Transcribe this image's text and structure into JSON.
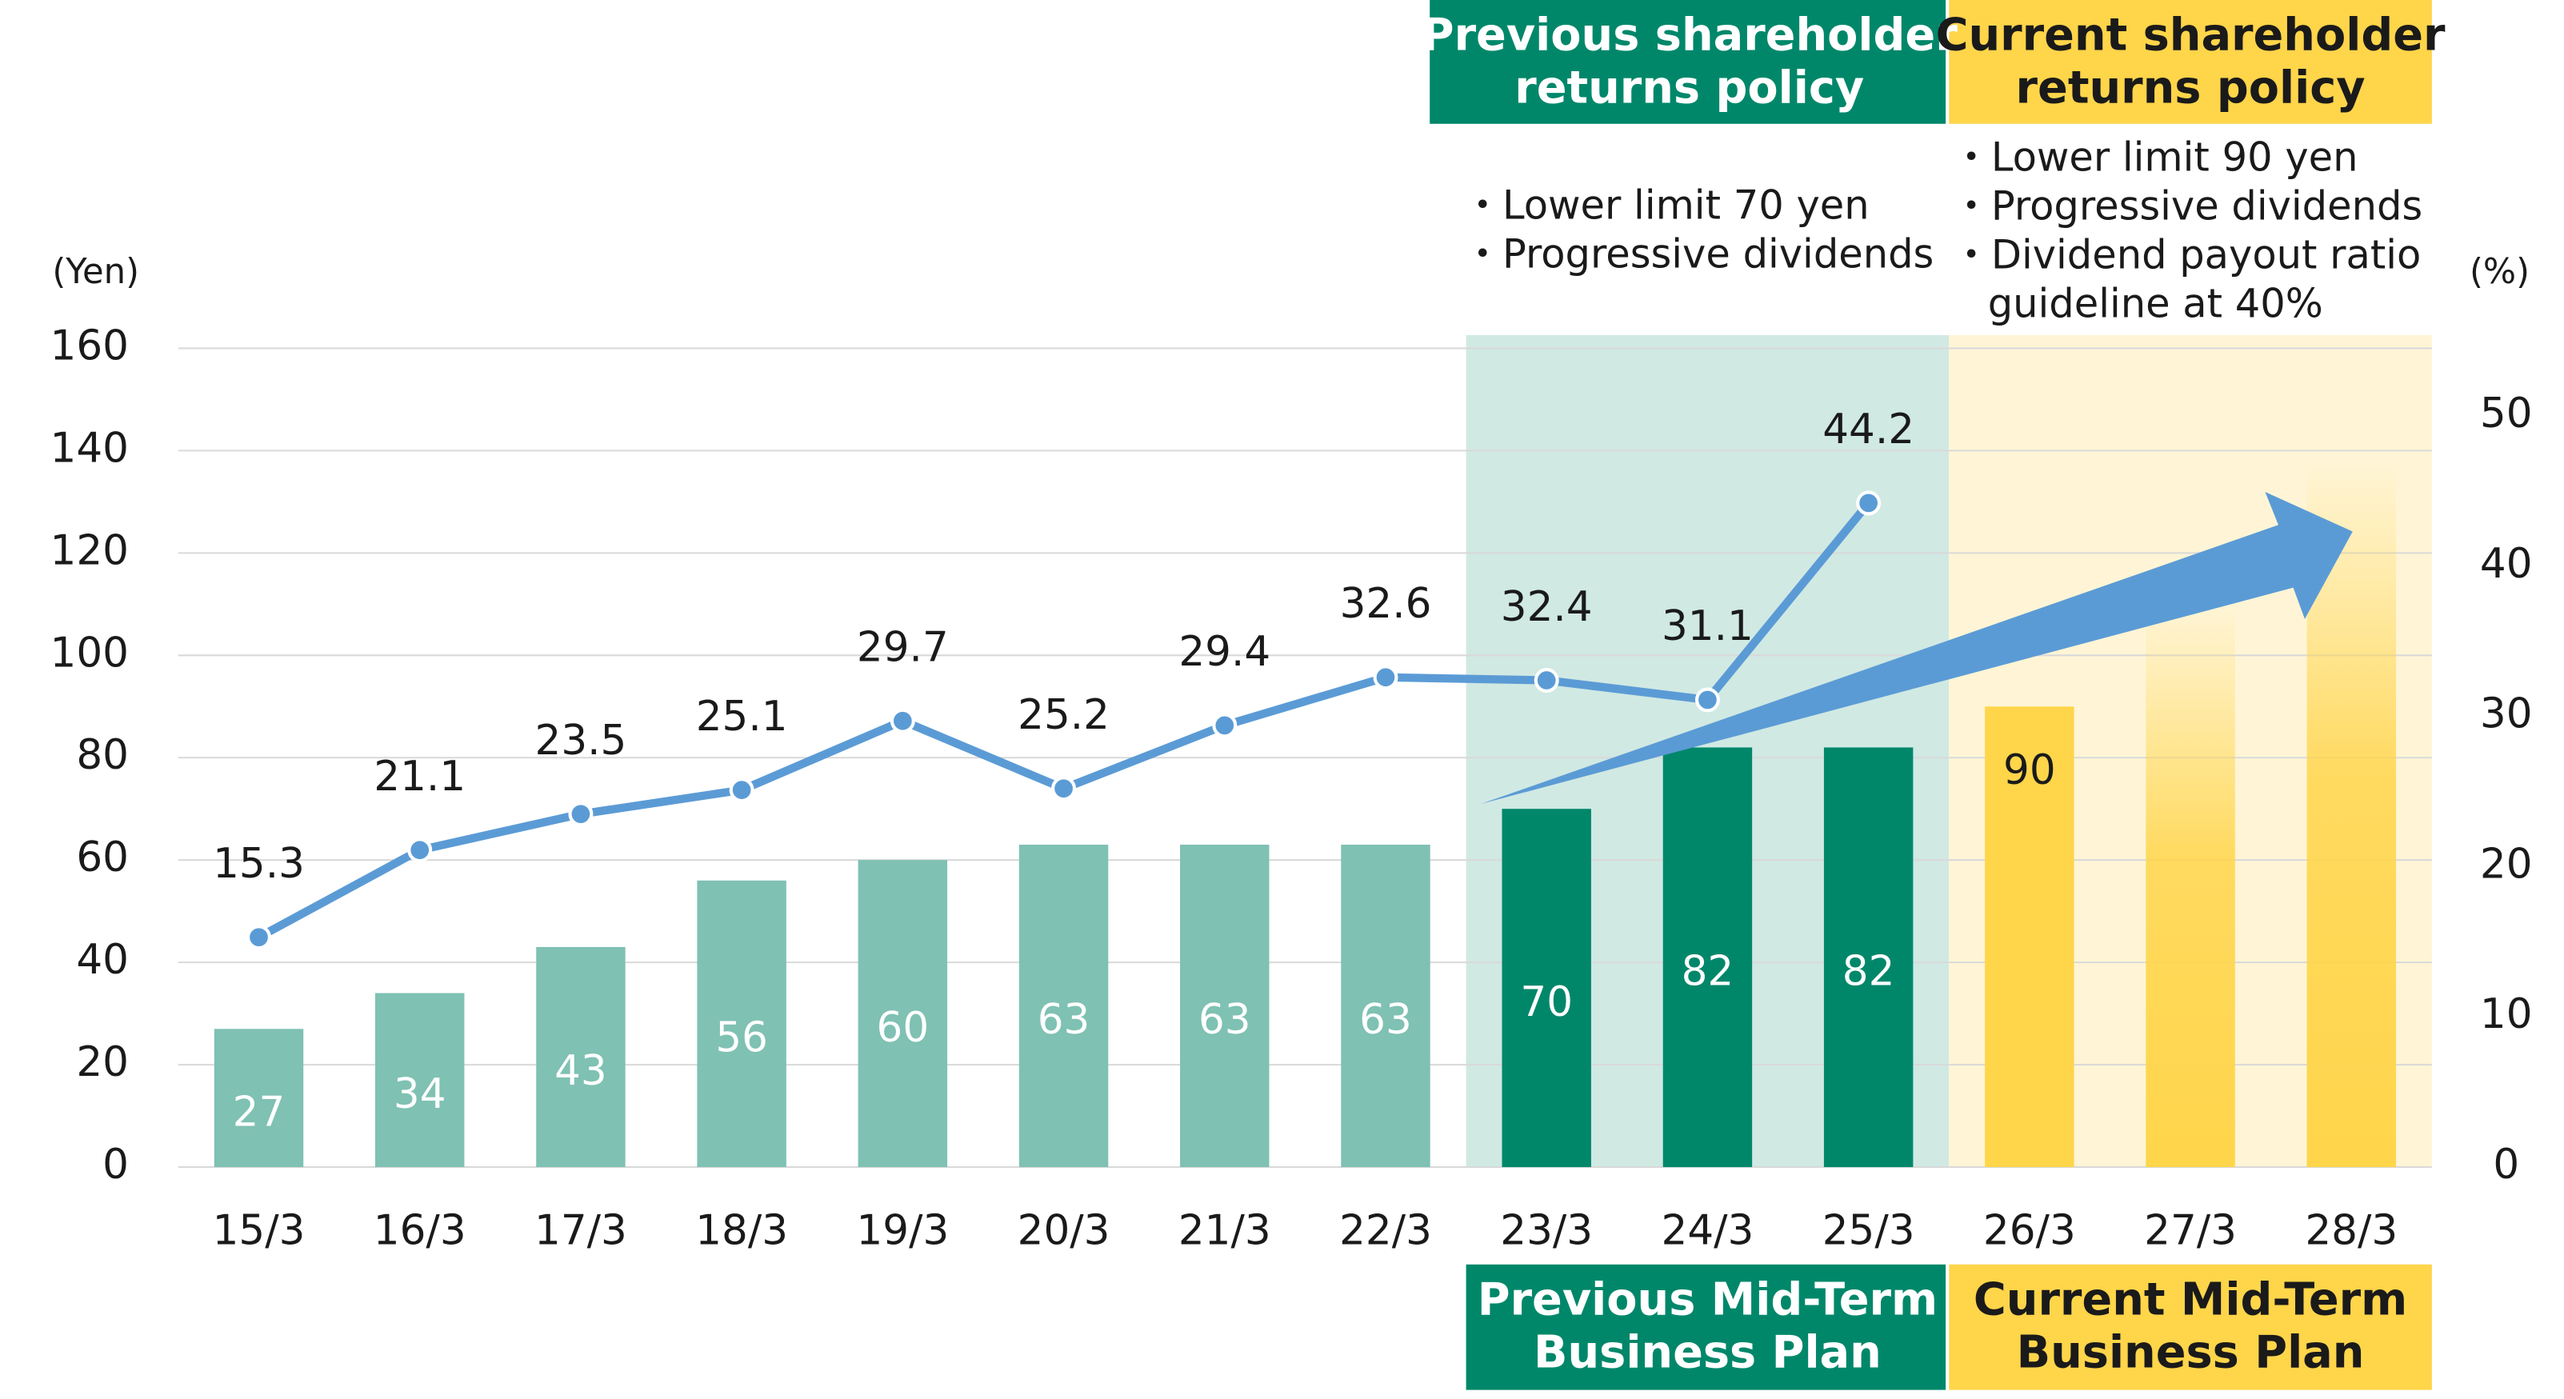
{
  "chart_data": {
    "type": "bar",
    "y_unit": "(Yen)",
    "y2_unit": "(%)",
    "categories": [
      "15/3",
      "16/3",
      "17/3",
      "18/3",
      "19/3",
      "20/3",
      "21/3",
      "22/3",
      "23/3",
      "24/3",
      "25/3",
      "26/3",
      "27/3",
      "28/3"
    ],
    "ylim": [
      0,
      160
    ],
    "yticks": [
      0,
      20,
      40,
      60,
      80,
      100,
      120,
      140,
      160
    ],
    "y2lim": [
      0,
      54.5
    ],
    "y2ticks": [
      0,
      10,
      20,
      30,
      40,
      50
    ],
    "grid": true,
    "series": [
      {
        "type": "bar",
        "values": [
          27,
          34,
          43,
          56,
          60,
          63,
          63,
          63,
          70,
          82,
          82,
          90,
          110,
          138
        ],
        "value_labels": [
          "27",
          "34",
          "43",
          "56",
          "60",
          "63",
          "63",
          "63",
          "70",
          "82",
          "82",
          "90",
          null,
          null
        ],
        "colors": [
          "#7fc1b3",
          "#7fc1b3",
          "#7fc1b3",
          "#7fc1b3",
          "#7fc1b3",
          "#7fc1b3",
          "#7fc1b3",
          "#7fc1b3",
          "#00876a",
          "#00876a",
          "#00876a",
          "#ffd54a",
          "#ffd54a",
          "#ffd54a"
        ]
      },
      {
        "type": "line",
        "axis": "y2",
        "color": "#5b9bd5",
        "values": [
          15.3,
          21.1,
          23.5,
          25.1,
          29.7,
          25.2,
          29.4,
          32.6,
          32.4,
          31.1,
          44.2,
          null,
          null,
          null
        ]
      }
    ],
    "panels": [
      {
        "header": [
          "Previous shareholder",
          "returns policy"
        ],
        "notes": [
          "・Lower limit 70 yen",
          "・Progressive dividends"
        ],
        "footer": [
          "Previous Mid-Term",
          "Business Plan"
        ],
        "shade": "#d0e9e3",
        "box": "#00876a",
        "text_color": "#ffffff"
      },
      {
        "header": [
          "Current shareholder",
          "returns policy"
        ],
        "notes": [
          "・Lower limit 90 yen",
          "・Progressive dividends",
          "・Dividend payout ratio",
          "guideline at 40%"
        ],
        "footer": [
          "Current Mid-Term",
          "Business Plan"
        ],
        "shade": "#fff5d6",
        "box": "#ffd54a",
        "text_color": "#1a1a1a"
      }
    ]
  }
}
